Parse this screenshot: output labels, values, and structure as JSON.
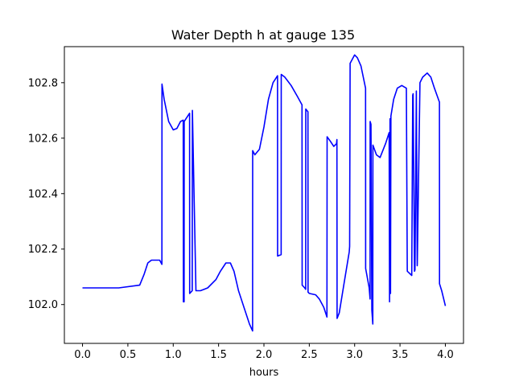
{
  "chart_data": {
    "type": "line",
    "title": "Water Depth h at gauge 135",
    "xlabel": "hours",
    "ylabel": "",
    "xlim": [
      -0.2,
      4.2
    ],
    "ylim": [
      101.86,
      102.93
    ],
    "x_ticks": [
      0.0,
      0.5,
      1.0,
      1.5,
      2.0,
      2.5,
      3.0,
      3.5,
      4.0
    ],
    "x_tick_labels": [
      "0.0",
      "0.5",
      "1.0",
      "1.5",
      "2.0",
      "2.5",
      "3.0",
      "3.5",
      "4.0"
    ],
    "y_ticks": [
      102.0,
      102.2,
      102.4,
      102.6,
      102.8
    ],
    "y_tick_labels": [
      "102.0",
      "102.2",
      "102.4",
      "102.6",
      "102.8"
    ],
    "grid": false,
    "series": [
      {
        "color": "#0000ff",
        "x": [
          0.0,
          0.4,
          0.63,
          0.68,
          0.72,
          0.76,
          0.8,
          0.85,
          0.875,
          0.876,
          0.9,
          0.95,
          1.0,
          1.04,
          1.08,
          1.11,
          1.112,
          1.12,
          1.121,
          1.14,
          1.18,
          1.181,
          1.21,
          1.211,
          1.25,
          1.3,
          1.38,
          1.47,
          1.52,
          1.58,
          1.63,
          1.67,
          1.72,
          1.78,
          1.84,
          1.875,
          1.876,
          1.9,
          1.95,
          2.0,
          2.05,
          2.1,
          2.15,
          2.151,
          2.19,
          2.191,
          2.23,
          2.3,
          2.37,
          2.42,
          2.421,
          2.45,
          2.46,
          2.461,
          2.485,
          2.486,
          2.5,
          2.57,
          2.61,
          2.66,
          2.695,
          2.696,
          2.73,
          2.77,
          2.8,
          2.805,
          2.806,
          2.83,
          2.88,
          2.94,
          2.945,
          2.95,
          3.0,
          3.03,
          3.07,
          3.12,
          3.121,
          3.16,
          3.17,
          3.171,
          3.18,
          3.19,
          3.2,
          3.201,
          3.24,
          3.28,
          3.34,
          3.38,
          3.385,
          3.39,
          3.395,
          3.4,
          3.43,
          3.47,
          3.52,
          3.57,
          3.58,
          3.581,
          3.63,
          3.64,
          3.645,
          3.66,
          3.665,
          3.68,
          3.69,
          3.691,
          3.72,
          3.75,
          3.8,
          3.84,
          3.88,
          3.935,
          3.936,
          3.96,
          4.0
        ],
        "y": [
          102.06,
          102.06,
          102.07,
          102.11,
          102.15,
          102.16,
          102.16,
          102.16,
          102.145,
          102.795,
          102.74,
          102.66,
          102.63,
          102.635,
          102.66,
          102.665,
          102.01,
          102.01,
          102.66,
          102.67,
          102.69,
          102.04,
          102.05,
          102.7,
          102.05,
          102.05,
          102.06,
          102.09,
          102.12,
          102.15,
          102.15,
          102.12,
          102.05,
          101.99,
          101.93,
          101.905,
          102.555,
          102.54,
          102.56,
          102.64,
          102.74,
          102.8,
          102.825,
          102.175,
          102.18,
          102.83,
          102.82,
          102.79,
          102.75,
          102.72,
          102.07,
          102.06,
          102.055,
          102.705,
          102.695,
          102.045,
          102.04,
          102.035,
          102.02,
          101.99,
          101.955,
          102.605,
          102.59,
          102.57,
          102.58,
          102.595,
          101.95,
          101.97,
          102.07,
          102.19,
          102.21,
          102.87,
          102.9,
          102.89,
          102.86,
          102.78,
          102.13,
          102.06,
          102.02,
          102.66,
          102.65,
          101.98,
          101.93,
          102.575,
          102.54,
          102.53,
          102.58,
          102.62,
          102.01,
          102.67,
          102.04,
          102.68,
          102.74,
          102.78,
          102.79,
          102.78,
          102.13,
          102.12,
          102.105,
          102.755,
          102.76,
          102.12,
          102.125,
          102.77,
          102.14,
          102.15,
          102.8,
          102.82,
          102.835,
          102.82,
          102.78,
          102.73,
          102.075,
          102.05,
          101.995
        ]
      }
    ]
  }
}
